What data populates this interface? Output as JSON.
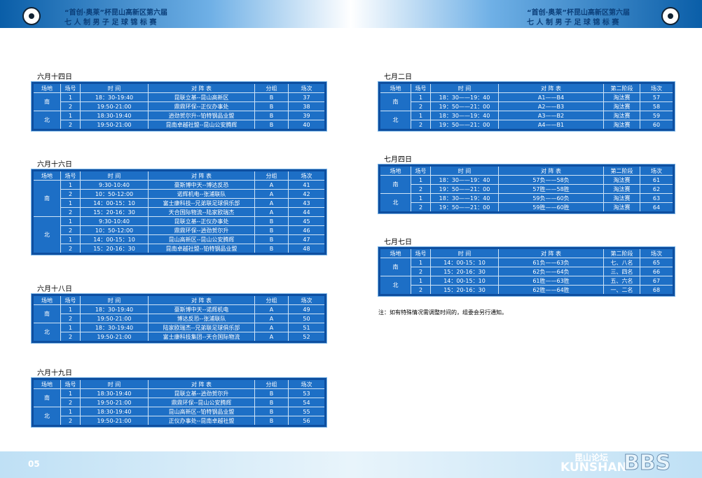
{
  "header": {
    "title_line1": "“首创·奥莱”杯昆山高新区第六届",
    "title_line2": "七 人 制 男 子 足 球 锦 标 赛"
  },
  "tables": [
    {
      "date": "六月十四日",
      "header": [
        "场地",
        "场号",
        "时    间",
        "对  阵  表",
        "分组",
        "场次"
      ],
      "groups": [
        {
          "venue": "南",
          "rows": [
            [
              "1",
              "18：30-19:40",
              "昆联立基--昆山高新区",
              "B",
              "37"
            ],
            [
              "2",
              "19:50-21:00",
              "鼎鼎环保--正仪办事处",
              "B",
              "38"
            ]
          ]
        },
        {
          "venue": "北",
          "rows": [
            [
              "1",
              "18:30-19:40",
              "逍劲贺尔升--铂特钢品业盟",
              "B",
              "39"
            ],
            [
              "2",
              "19:50-21:00",
              "昆南卓越社盟--昆山公安腾辉",
              "B",
              "40"
            ]
          ]
        }
      ]
    },
    {
      "date": "六月十六日",
      "header": [
        "场地",
        "场号",
        "时    间",
        "对  阵  表",
        "分组",
        "场次"
      ],
      "groups": [
        {
          "venue": "南",
          "rows": [
            [
              "1",
              "9:30-10:40",
              "豪斯博中天--博达反恐",
              "A",
              "41"
            ],
            [
              "2",
              "10：50-12:00",
              "诺辉机电--张浦联队",
              "A",
              "42"
            ],
            [
              "1",
              "14：00-15：10",
              "富士康科技--兄弟联足球俱乐部",
              "A",
              "43"
            ],
            [
              "2",
              "15：20-16：30",
              "天合国际物流--陆家欧瑞杰",
              "A",
              "44"
            ]
          ]
        },
        {
          "venue": "北",
          "rows": [
            [
              "1",
              "9:30-10:40",
              "昆联立基--正仪办事处",
              "B",
              "45"
            ],
            [
              "2",
              "10：50-12:00",
              "鼎鼎环保--逍劲贺尔升",
              "B",
              "46"
            ],
            [
              "1",
              "14：00-15：10",
              "昆山高新区--昆山公安腾辉",
              "B",
              "47"
            ],
            [
              "2",
              "15：20-16：30",
              "昆南卓越社盟--铂特钢品业盟",
              "B",
              "48"
            ]
          ]
        }
      ]
    },
    {
      "date": "六月十八日",
      "header": [
        "场地",
        "场号",
        "时    间",
        "对  阵  表",
        "分组",
        "场次"
      ],
      "groups": [
        {
          "venue": "南",
          "rows": [
            [
              "1",
              "18：30-19:40",
              "豪斯博中天--诺辉机电",
              "A",
              "49"
            ],
            [
              "2",
              "19:50-21:00",
              "博达反恐--张浦联队",
              "A",
              "50"
            ]
          ]
        },
        {
          "venue": "北",
          "rows": [
            [
              "1",
              "18：30-19:40",
              "陆家欧瑞杰--兄弟联足球俱乐部",
              "A",
              "51"
            ],
            [
              "2",
              "19:50-21:00",
              "富士康科技集团--天合国际物流",
              "A",
              "52"
            ]
          ]
        }
      ]
    },
    {
      "date": "六月十九日",
      "header": [
        "场地",
        "场号",
        "时    间",
        "对  阵  表",
        "分组",
        "场次"
      ],
      "groups": [
        {
          "venue": "南",
          "rows": [
            [
              "1",
              "18:30-19:40",
              "昆联立基--逍劲贺尔升",
              "B",
              "53"
            ],
            [
              "2",
              "19:50-21:00",
              "鼎鼎环保--昆山公安腾辉",
              "B",
              "54"
            ]
          ]
        },
        {
          "venue": "北",
          "rows": [
            [
              "1",
              "18:30-19:40",
              "昆山高新区--铂特钢品业盟",
              "B",
              "55"
            ],
            [
              "2",
              "19:50-21:00",
              "正仪办事处--昆南卓越社盟",
              "B",
              "56"
            ]
          ]
        }
      ]
    },
    {
      "date": "七月二日",
      "header": [
        "场地",
        "场号",
        "时    间",
        "对  阵  表",
        "第二阶段",
        "场次"
      ],
      "groups": [
        {
          "venue": "南",
          "rows": [
            [
              "1",
              "18：30——19：40",
              "A1——B4",
              "淘汰赛",
              "57"
            ],
            [
              "2",
              "19：50——21：00",
              "A2——B3",
              "淘汰赛",
              "58"
            ]
          ]
        },
        {
          "venue": "北",
          "rows": [
            [
              "1",
              "18：30——19：40",
              "A3——B2",
              "淘汰赛",
              "59"
            ],
            [
              "2",
              "19：50——21：00",
              "A4——B1",
              "淘汰赛",
              "60"
            ]
          ]
        }
      ]
    },
    {
      "date": "七月四日",
      "header": [
        "场地",
        "场号",
        "时    间",
        "对  阵  表",
        "第二阶段",
        "场次"
      ],
      "groups": [
        {
          "venue": "南",
          "rows": [
            [
              "1",
              "18：30——19：40",
              "57负——58负",
              "淘汰赛",
              "61"
            ],
            [
              "2",
              "19：50——21：00",
              "57胜——58胜",
              "淘汰赛",
              "62"
            ]
          ]
        },
        {
          "venue": "北",
          "rows": [
            [
              "1",
              "18：30——19：40",
              "59负——60负",
              "淘汰赛",
              "63"
            ],
            [
              "2",
              "19：50——21：00",
              "59胜——60胜",
              "淘汰赛",
              "64"
            ]
          ]
        }
      ]
    },
    {
      "date": "七月七日",
      "header": [
        "场地",
        "场号",
        "时    间",
        "对  阵  表",
        "第二阶段",
        "场次"
      ],
      "groups": [
        {
          "venue": "南",
          "rows": [
            [
              "1",
              "14：00-15：10",
              "61负——63负",
              "七、八名",
              "65"
            ],
            [
              "2",
              "15：20-16：30",
              "62负——64负",
              "三、四名",
              "66"
            ]
          ]
        },
        {
          "venue": "北",
          "rows": [
            [
              "1",
              "14：00-15：10",
              "61胜——63胜",
              "五、六名",
              "67"
            ],
            [
              "2",
              "15：20-16：30",
              "62胜——64胜",
              "一、二名",
              "68"
            ]
          ]
        }
      ]
    }
  ],
  "note": "注：如有特殊情况需调整时间的，组委会另行通知。",
  "footer": {
    "page_left": "05",
    "watermark_cn": "昆山论坛",
    "watermark_en": "KUNSHAN",
    "watermark_bbs": "BBS"
  }
}
